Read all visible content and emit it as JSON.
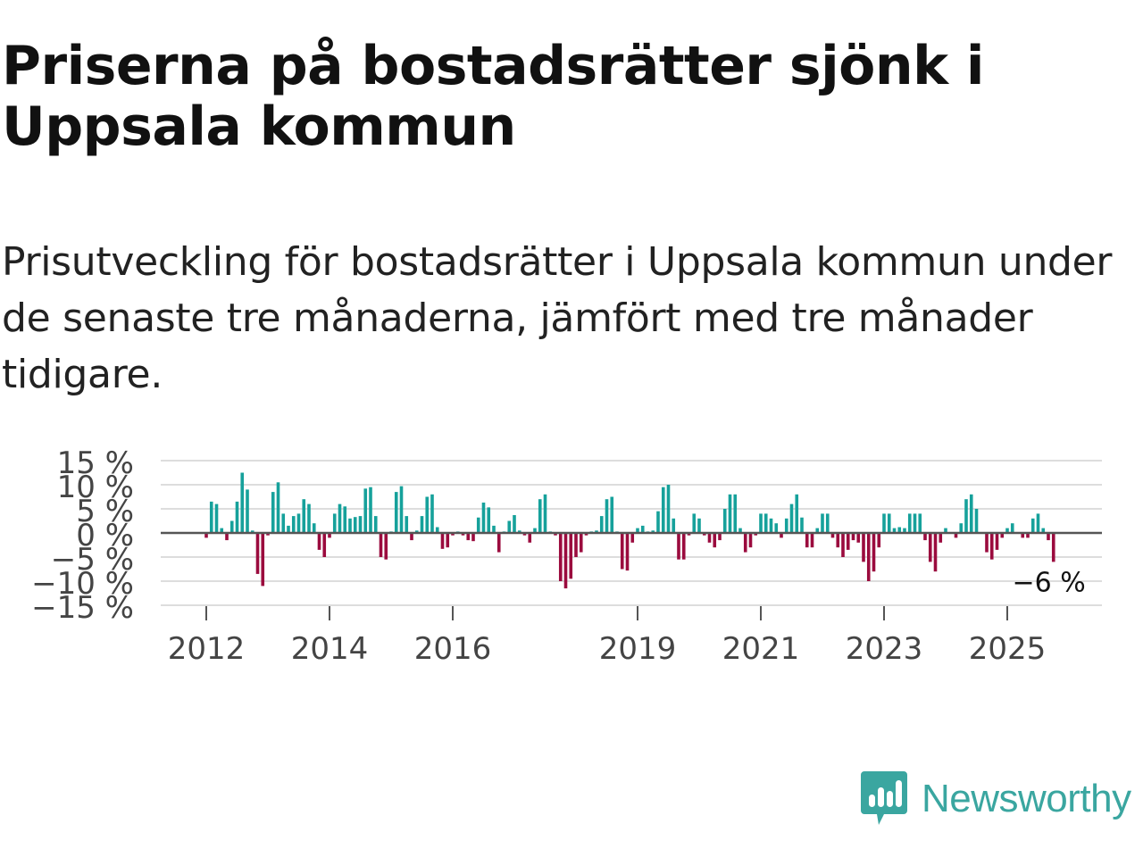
{
  "title": "Priserna på bostadsrätter sjönk i Uppsala kommun",
  "subtitle": "Prisutveckling för bostadsrätter i Uppsala kommun under de senaste tre månaderna, jämfört med tre månader tidigare.",
  "logo": {
    "text": "Newsworthy",
    "icon": "newsworthy-logo-icon"
  },
  "colors": {
    "positive": "#16a19b",
    "negative": "#9b0b3e",
    "grid": "#dddddd",
    "zero": "#555555",
    "logo": "#3aa6a0"
  },
  "chart_data": {
    "type": "bar",
    "title": "",
    "xlabel": "",
    "ylabel": "",
    "ylim": [
      -15,
      15
    ],
    "yticks": [
      15,
      10,
      5,
      0,
      -5,
      -10,
      -15
    ],
    "ytick_labels": [
      "15 %",
      "10 %",
      "5 %",
      "0 %",
      "−5 %",
      "−10 %",
      "−15 %"
    ],
    "xticks": [
      {
        "label": "2012",
        "year": 2012
      },
      {
        "label": "2014",
        "year": 2014
      },
      {
        "label": "2016",
        "year": 2016
      },
      {
        "label": "2019",
        "year": 2019
      },
      {
        "label": "2021",
        "year": 2021
      },
      {
        "label": "2023",
        "year": 2023
      },
      {
        "label": "2025",
        "year": 2025
      }
    ],
    "start": {
      "year": 2012,
      "month": 1
    },
    "frequency": "monthly",
    "grid": true,
    "last_label": "−6 %",
    "values": [
      -1,
      6.5,
      6,
      1,
      -1.5,
      2.5,
      6.5,
      12.5,
      9,
      0.5,
      -8.5,
      -11,
      -0.5,
      8.5,
      10.5,
      4,
      1.5,
      3.5,
      4,
      7,
      6,
      2,
      -3.5,
      -5,
      -1,
      4,
      6,
      5.5,
      3,
      3.3,
      3.5,
      9.2,
      9.5,
      3.5,
      -5,
      -5.5,
      0.3,
      8.5,
      9.7,
      3.5,
      -1.5,
      0.5,
      3.5,
      7.5,
      8,
      1.2,
      -3.3,
      -3,
      -0.5,
      0.3,
      -0.5,
      -1.5,
      -1.7,
      3.2,
      6.3,
      5.3,
      1.5,
      -4,
      0.3,
      2.5,
      3.7,
      0.5,
      -0.5,
      -2,
      1,
      7,
      8,
      0.3,
      -0.5,
      -10,
      -11.5,
      -9.5,
      -5,
      -4,
      -0.5,
      0.3,
      0.5,
      3.5,
      7,
      7.5,
      0.3,
      -7.5,
      -7.8,
      -2,
      1,
      1.5,
      0.3,
      0.5,
      4.5,
      9.5,
      10,
      3,
      -5.5,
      -5.5,
      -0.5,
      4,
      3,
      -0.5,
      -2,
      -3,
      -1.5,
      5,
      8,
      8,
      1,
      -4,
      -3,
      -0.5,
      4,
      4,
      3,
      2,
      -1,
      3,
      6,
      8,
      3.2,
      -3,
      -3,
      1,
      4,
      4,
      -1,
      -3,
      -5,
      -3.5,
      -1.5,
      -2,
      -6,
      -10,
      -8,
      -3,
      4,
      4,
      1,
      1.2,
      1,
      4,
      4,
      4,
      -1.5,
      -6,
      -8,
      -2,
      1,
      0,
      -1,
      2,
      7,
      8,
      5,
      0,
      -4,
      -5.5,
      -3.5,
      -1,
      1,
      2,
      0,
      -1,
      -1,
      3,
      4,
      1,
      -1.5,
      -6
    ]
  }
}
